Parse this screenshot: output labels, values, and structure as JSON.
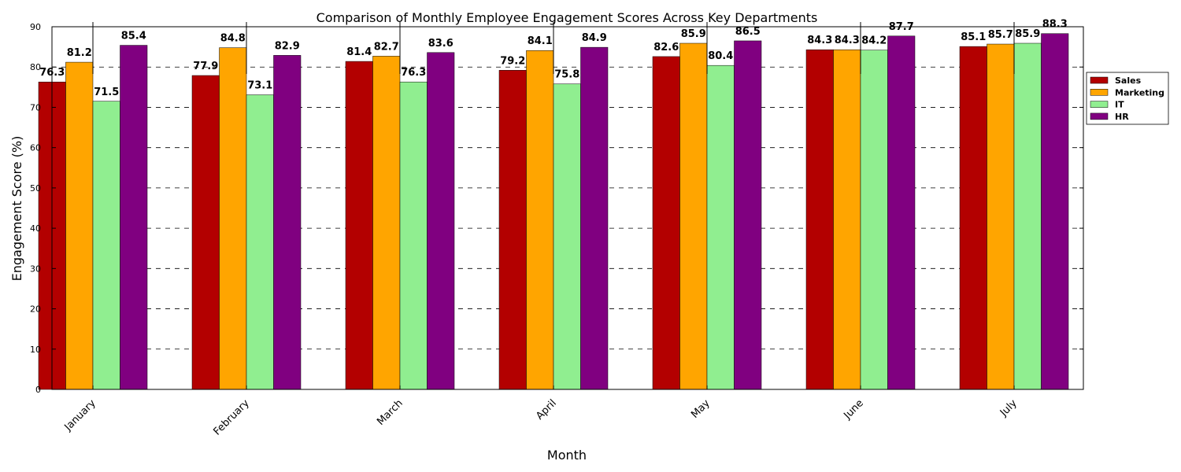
{
  "chart_data": {
    "type": "bar",
    "title": "Comparison of Monthly Employee Engagement Scores Across Key Departments",
    "xlabel": "Month",
    "ylabel": "Engagement Score (%)",
    "ylim": [
      0,
      90
    ],
    "yticks": [
      0,
      10,
      20,
      30,
      40,
      50,
      60,
      70,
      80,
      90
    ],
    "grid": "y-dashed",
    "legend_position": "right",
    "categories": [
      "January",
      "February",
      "March",
      "April",
      "May",
      "June",
      "July"
    ],
    "series": [
      {
        "name": "Sales",
        "color": "#b30000",
        "values": [
          76.3,
          77.9,
          81.4,
          79.2,
          82.6,
          84.3,
          85.1
        ]
      },
      {
        "name": "Marketing",
        "color": "#ffa500",
        "values": [
          81.2,
          84.8,
          82.7,
          84.1,
          85.9,
          84.3,
          85.7
        ]
      },
      {
        "name": "IT",
        "color": "#90ee90",
        "values": [
          71.5,
          73.1,
          76.3,
          75.8,
          80.4,
          84.2,
          85.9
        ]
      },
      {
        "name": "HR",
        "color": "#800080",
        "values": [
          85.4,
          82.9,
          83.6,
          84.9,
          86.5,
          87.7,
          88.3
        ]
      }
    ]
  }
}
